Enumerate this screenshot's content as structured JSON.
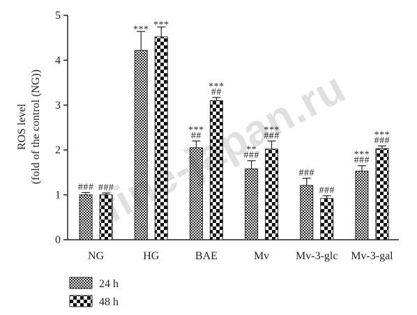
{
  "chart_data": {
    "type": "bar",
    "ylabel_line1": "ROS level",
    "ylabel_line2": "(fold of the control (NG))",
    "ylim": [
      0,
      5
    ],
    "yticks": [
      0,
      1,
      2,
      3,
      4,
      5
    ],
    "categories": [
      "NG",
      "HG",
      "BAE",
      "Mv",
      "Mv-3-glc",
      "Mv-3-gal"
    ],
    "series": [
      {
        "name": "24 h",
        "values": [
          1.0,
          4.22,
          2.05,
          1.58,
          1.21,
          1.53
        ],
        "errors": [
          0.05,
          0.42,
          0.15,
          0.18,
          0.16,
          0.12
        ],
        "annot_top": [
          "",
          "***",
          "***",
          "**",
          "",
          "***"
        ],
        "annot_bottom": [
          "###",
          "",
          "##",
          "###",
          "###",
          "###"
        ]
      },
      {
        "name": "48 h",
        "values": [
          1.0,
          4.52,
          3.1,
          2.02,
          0.92,
          2.03
        ],
        "errors": [
          0.04,
          0.22,
          0.07,
          0.18,
          0.06,
          0.06
        ],
        "annot_top": [
          "",
          "***",
          "***",
          "***",
          "",
          "***"
        ],
        "annot_bottom": [
          "###",
          "",
          "##",
          "###",
          "###",
          "###"
        ]
      }
    ],
    "legend_position": "bottom-left",
    "grid": false
  },
  "watermark": "fine-japan.ru"
}
